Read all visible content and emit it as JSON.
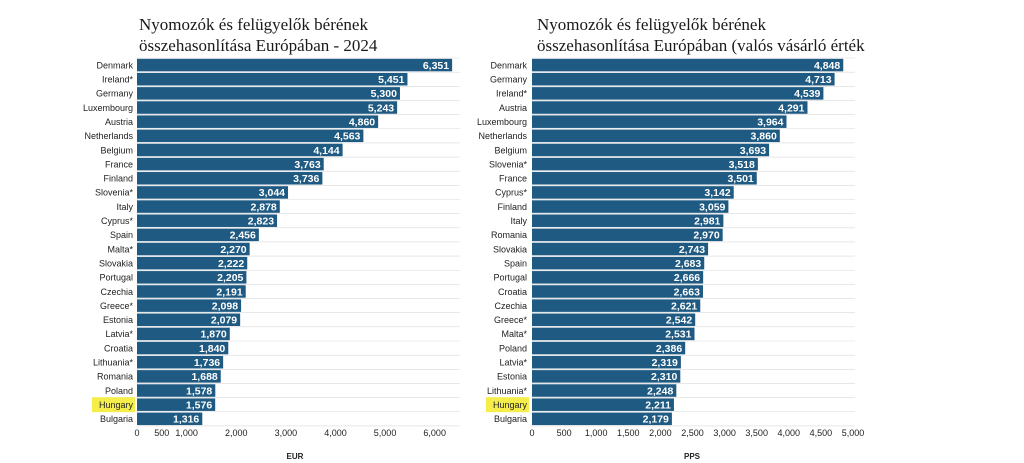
{
  "colors": {
    "bar": "#1f5a82",
    "highlight": "#f5ee4a",
    "grid": "#d9d9d9",
    "label": "#222222",
    "value": "#ffffff"
  },
  "chart_data": [
    {
      "type": "bar",
      "orientation": "horizontal",
      "title_line1": "Nyomozók és felügyelők bérének",
      "title_line2": "összehasonlítása Európában - 2024",
      "xlabel": "EUR",
      "xlim": [
        0,
        6500
      ],
      "ticks": [
        0,
        500,
        1000,
        2000,
        3000,
        4000,
        5000,
        6000
      ],
      "tick_labels": [
        "0",
        "500",
        "1,000",
        "2,000",
        "3,000",
        "4,000",
        "5,000",
        "6,000"
      ],
      "highlight": "Hungary",
      "categories": [
        "Denmark",
        "Ireland*",
        "Germany",
        "Luxembourg",
        "Austria",
        "Netherlands",
        "Belgium",
        "France",
        "Finland",
        "Slovenia*",
        "Italy",
        "Cyprus*",
        "Spain",
        "Malta*",
        "Slovakia",
        "Portugal",
        "Czechia",
        "Greece*",
        "Estonia",
        "Latvia*",
        "Croatia",
        "Lithuania*",
        "Romania",
        "Poland",
        "Hungary",
        "Bulgaria"
      ],
      "values": [
        6351,
        5451,
        5300,
        5243,
        4860,
        4563,
        4144,
        3763,
        3736,
        3044,
        2878,
        2823,
        2456,
        2270,
        2222,
        2205,
        2191,
        2098,
        2079,
        1870,
        1840,
        1736,
        1688,
        1578,
        1576,
        1316
      ],
      "value_labels": [
        "6,351",
        "5,451",
        "5,300",
        "5,243",
        "4,860",
        "4,563",
        "4,144",
        "3,763",
        "3,736",
        "3,044",
        "2,878",
        "2,823",
        "2,456",
        "2,270",
        "2,222",
        "2,205",
        "2,191",
        "2,098",
        "2,079",
        "1,870",
        "1,840",
        "1,736",
        "1,688",
        "1,578",
        "1,576",
        "1,316"
      ]
    },
    {
      "type": "bar",
      "orientation": "horizontal",
      "title_line1": "Nyomozók és felügyelők bérének",
      "title_line2": "összehasonlítása Európában (valós vásárló érték",
      "xlabel": "PPS",
      "xlim": [
        0,
        5000
      ],
      "ticks": [
        0,
        500,
        1000,
        1500,
        2000,
        2500,
        3000,
        3500,
        4000,
        4500,
        5000
      ],
      "tick_labels": [
        "0",
        "500",
        "1,000",
        "1,500",
        "2,000",
        "2,500",
        "3,000",
        "3,500",
        "4,000",
        "4,500",
        "5,000"
      ],
      "highlight": "Hungary",
      "categories": [
        "Denmark",
        "Germany",
        "Ireland*",
        "Austria",
        "Luxembourg",
        "Netherlands",
        "Belgium",
        "Slovenia*",
        "France",
        "Cyprus*",
        "Finland",
        "Italy",
        "Romania",
        "Slovakia",
        "Spain",
        "Portugal",
        "Croatia",
        "Czechia",
        "Greece*",
        "Malta*",
        "Poland",
        "Latvia*",
        "Estonia",
        "Lithuania*",
        "Hungary",
        "Bulgaria"
      ],
      "values": [
        4848,
        4713,
        4539,
        4291,
        3964,
        3860,
        3693,
        3518,
        3501,
        3142,
        3059,
        2981,
        2970,
        2743,
        2683,
        2666,
        2663,
        2621,
        2542,
        2531,
        2386,
        2319,
        2310,
        2248,
        2211,
        2179
      ],
      "value_labels": [
        "4,848",
        "4,713",
        "4,539",
        "4,291",
        "3,964",
        "3,860",
        "3,693",
        "3,518",
        "3,501",
        "3,142",
        "3,059",
        "2,981",
        "2,970",
        "2,743",
        "2,683",
        "2,666",
        "2,663",
        "2,621",
        "2,542",
        "2,531",
        "2,386",
        "2,319",
        "2,310",
        "2,248",
        "2,211",
        "2,179"
      ]
    }
  ]
}
